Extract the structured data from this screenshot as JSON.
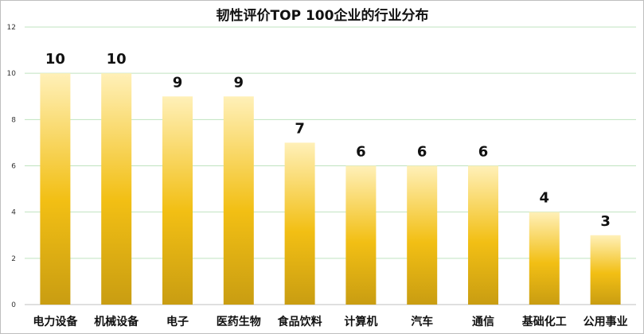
{
  "chart_data": {
    "type": "bar",
    "title": "韧性评价TOP 100企业的行业分布",
    "categories": [
      "电力设备",
      "机械设备",
      "电子",
      "医药生物",
      "食品饮料",
      "计算机",
      "汽车",
      "通信",
      "基础化工",
      "公用事业"
    ],
    "values": [
      10,
      10,
      9,
      9,
      7,
      6,
      6,
      6,
      4,
      3
    ],
    "ylim": [
      0,
      12
    ],
    "yticks": [
      0,
      2,
      4,
      6,
      8,
      10,
      12
    ],
    "grid": true,
    "legend": "none",
    "colors": {
      "bar_top": "#fff0b8",
      "bar_mid": "#f2bf14",
      "bar_bottom": "#c99d12",
      "grid": "#bfe3bf",
      "axis": "#bfbfbf"
    }
  }
}
